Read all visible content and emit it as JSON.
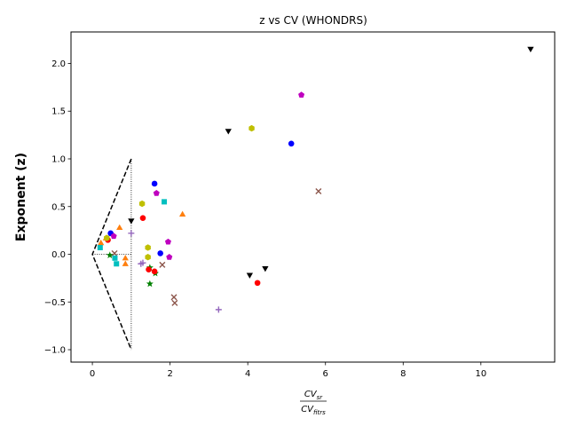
{
  "chart_data": {
    "type": "scatter",
    "title": "z vs CV (WHONDRS)",
    "ylabel": "Exponent (z)",
    "xlabel": {
      "numerator": "CV",
      "numerator_sub": "sr",
      "denominator": "CV",
      "denominator_sub": "fitrs"
    },
    "xlim": [
      -0.55,
      11.9
    ],
    "ylim": [
      -1.13,
      2.33
    ],
    "xticks": [
      0,
      2,
      4,
      6,
      8,
      10
    ],
    "yticks": [
      -1.0,
      -0.5,
      0.0,
      0.5,
      1.0,
      1.5,
      2.0
    ],
    "ytick_labels": [
      "−1.0",
      "−0.5",
      "0.0",
      "0.5",
      "1.0",
      "1.5",
      "2.0"
    ],
    "grid": false,
    "reference_lines": [
      {
        "style": "dashed",
        "points": [
          [
            1.0,
            1.0
          ],
          [
            0.0,
            0.0
          ],
          [
            1.0,
            -1.0
          ]
        ]
      },
      {
        "style": "dotted",
        "points": [
          [
            1.0,
            1.0
          ],
          [
            1.0,
            -1.0
          ]
        ]
      },
      {
        "style": "dotted",
        "points": [
          [
            0.0,
            0.0
          ],
          [
            1.0,
            0.0
          ]
        ]
      }
    ],
    "series": [
      {
        "color": "#0000ff",
        "marker": "circle",
        "points": [
          [
            0.47,
            0.22
          ],
          [
            1.6,
            0.74
          ],
          [
            1.75,
            0.01
          ],
          [
            5.12,
            1.16
          ]
        ]
      },
      {
        "color": "#ff7f0e",
        "marker": "triangle-up",
        "points": [
          [
            0.22,
            0.12
          ],
          [
            0.35,
            0.17
          ],
          [
            0.7,
            0.28
          ],
          [
            0.85,
            -0.04
          ],
          [
            0.85,
            -0.1
          ],
          [
            2.32,
            0.42
          ]
        ]
      },
      {
        "color": "#008000",
        "marker": "star",
        "points": [
          [
            0.45,
            -0.01
          ],
          [
            1.48,
            -0.14
          ],
          [
            1.48,
            -0.31
          ],
          [
            1.62,
            -0.2
          ]
        ]
      },
      {
        "color": "#ff0000",
        "marker": "circle",
        "points": [
          [
            0.4,
            0.15
          ],
          [
            1.3,
            0.38
          ],
          [
            1.45,
            -0.16
          ],
          [
            1.6,
            -0.18
          ],
          [
            4.25,
            -0.3
          ]
        ]
      },
      {
        "color": "#9467bd",
        "marker": "plus",
        "points": [
          [
            1.0,
            0.22
          ],
          [
            1.25,
            -0.1
          ],
          [
            1.3,
            -0.09
          ],
          [
            3.25,
            -0.58
          ]
        ]
      },
      {
        "color": "#8c564b",
        "marker": "x",
        "points": [
          [
            0.57,
            0.01
          ],
          [
            1.8,
            -0.11
          ],
          [
            2.1,
            -0.45
          ],
          [
            2.12,
            -0.51
          ],
          [
            5.82,
            0.66
          ]
        ]
      },
      {
        "color": "#bf00bf",
        "marker": "pentagon",
        "points": [
          [
            0.55,
            0.19
          ],
          [
            1.65,
            0.64
          ],
          [
            1.95,
            0.13
          ],
          [
            1.98,
            -0.03
          ],
          [
            5.38,
            1.67
          ]
        ]
      },
      {
        "color": "#bfbf00",
        "marker": "hexagon",
        "points": [
          [
            0.37,
            0.17
          ],
          [
            1.28,
            0.53
          ],
          [
            1.43,
            0.07
          ],
          [
            1.43,
            -0.03
          ],
          [
            4.1,
            1.32
          ]
        ]
      },
      {
        "color": "#00bfbf",
        "marker": "square",
        "points": [
          [
            0.2,
            0.07
          ],
          [
            0.58,
            -0.04
          ],
          [
            0.62,
            -0.1
          ],
          [
            1.85,
            0.55
          ]
        ]
      },
      {
        "color": "#000000",
        "marker": "triangle-down",
        "points": [
          [
            1.0,
            0.35
          ],
          [
            3.5,
            1.29
          ],
          [
            4.05,
            -0.22
          ],
          [
            4.45,
            -0.15
          ],
          [
            11.28,
            2.15
          ]
        ]
      }
    ]
  }
}
